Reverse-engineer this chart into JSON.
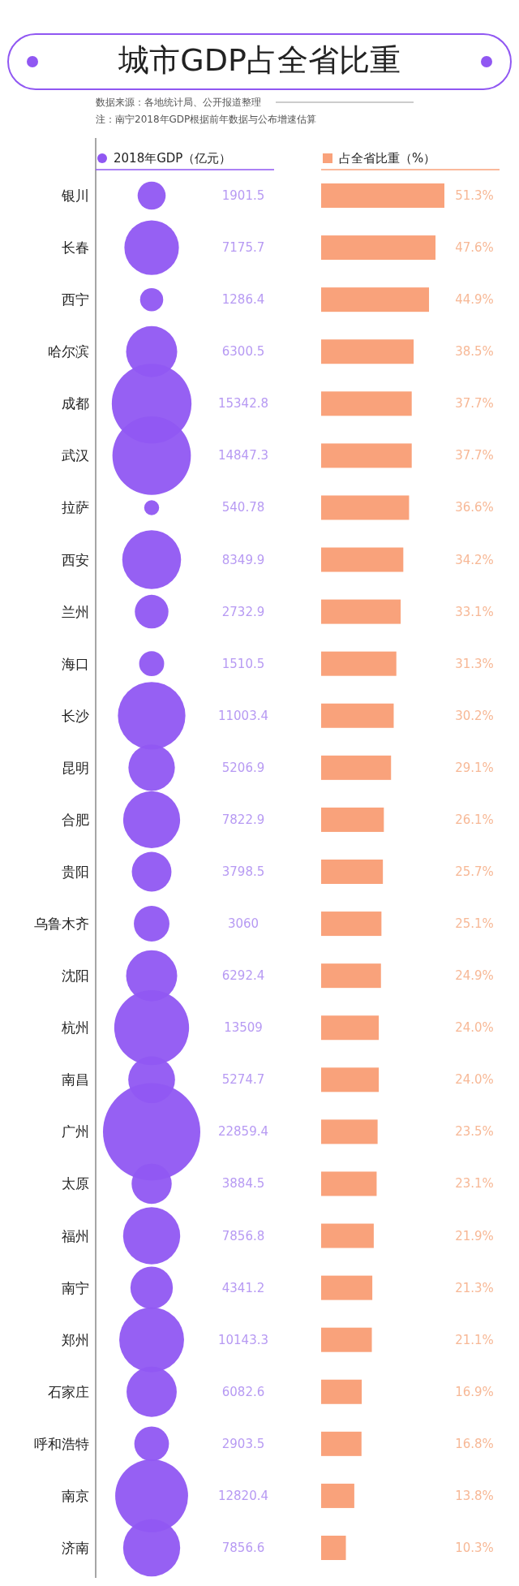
{
  "chart_data": [
    {
      "type": "other",
      "title": "城市GDP占全省比重",
      "annotations": [
        "数据来源：各地统计局、公开报道整理",
        "注：南宁2018年GDP根据前年数据与公布增速估算"
      ],
      "categories": [
        "银川",
        "长春",
        "西宁",
        "哈尔滨",
        "成都",
        "武汉",
        "拉萨",
        "西安",
        "兰州",
        "海口",
        "长沙",
        "昆明",
        "合肥",
        "贵阳",
        "乌鲁木齐",
        "沈阳",
        "杭州",
        "南昌",
        "广州",
        "太原",
        "福州",
        "南宁",
        "郑州",
        "石家庄",
        "呼和浩特",
        "南京",
        "济南"
      ],
      "legend": "top",
      "data_labels": true,
      "series": [
        {
          "name": "2018年GDP（亿元）",
          "color": "#9057f2",
          "values": [
            1901.5,
            7175.7,
            1286.4,
            6300.5,
            15342.8,
            14847.3,
            540.78,
            8349.9,
            2732.9,
            1510.5,
            11003.4,
            5206.9,
            7822.9,
            3798.5,
            3060,
            6292.4,
            13509,
            5274.7,
            22859.4,
            3884.5,
            7856.8,
            4341.2,
            10143.3,
            6082.6,
            2903.5,
            12820.4,
            7856.6
          ]
        }
      ]
    },
    {
      "type": "bar",
      "orientation": "horizontal",
      "legend": "top",
      "categories": [
        null,
        null,
        null,
        null,
        null,
        null,
        null,
        null,
        null,
        null,
        null,
        null,
        null,
        null,
        null,
        null,
        null,
        null,
        null,
        null,
        null,
        null,
        null,
        null,
        null,
        null,
        null
      ],
      "series": [
        {
          "name": "占全省比重（%）",
          "color": "#f9a27b",
          "values": [
            51.3,
            47.6,
            44.9,
            38.5,
            37.7,
            37.7,
            36.6,
            34.2,
            33.1,
            31.3,
            30.2,
            29.1,
            26.1,
            25.7,
            25.1,
            24.9,
            24.0,
            24.0,
            23.5,
            23.1,
            21.9,
            21.3,
            21.1,
            16.9,
            16.8,
            13.8,
            10.3
          ],
          "value_labels": [
            "51.3%",
            "47.6%",
            "44.9%",
            "38.5%",
            "37.7%",
            "37.7%",
            "36.6%",
            "34.2%",
            "33.1%",
            "31.3%",
            "30.2%",
            "29.1%",
            "26.1%",
            "25.7%",
            "25.1%",
            "24.9%",
            "24.0%",
            "24.0%",
            "23.5%",
            "23.1%",
            "21.9%",
            "21.3%",
            "21.1%",
            "16.9%",
            "16.8%",
            "13.8%",
            "10.3%"
          ]
        }
      ]
    }
  ]
}
